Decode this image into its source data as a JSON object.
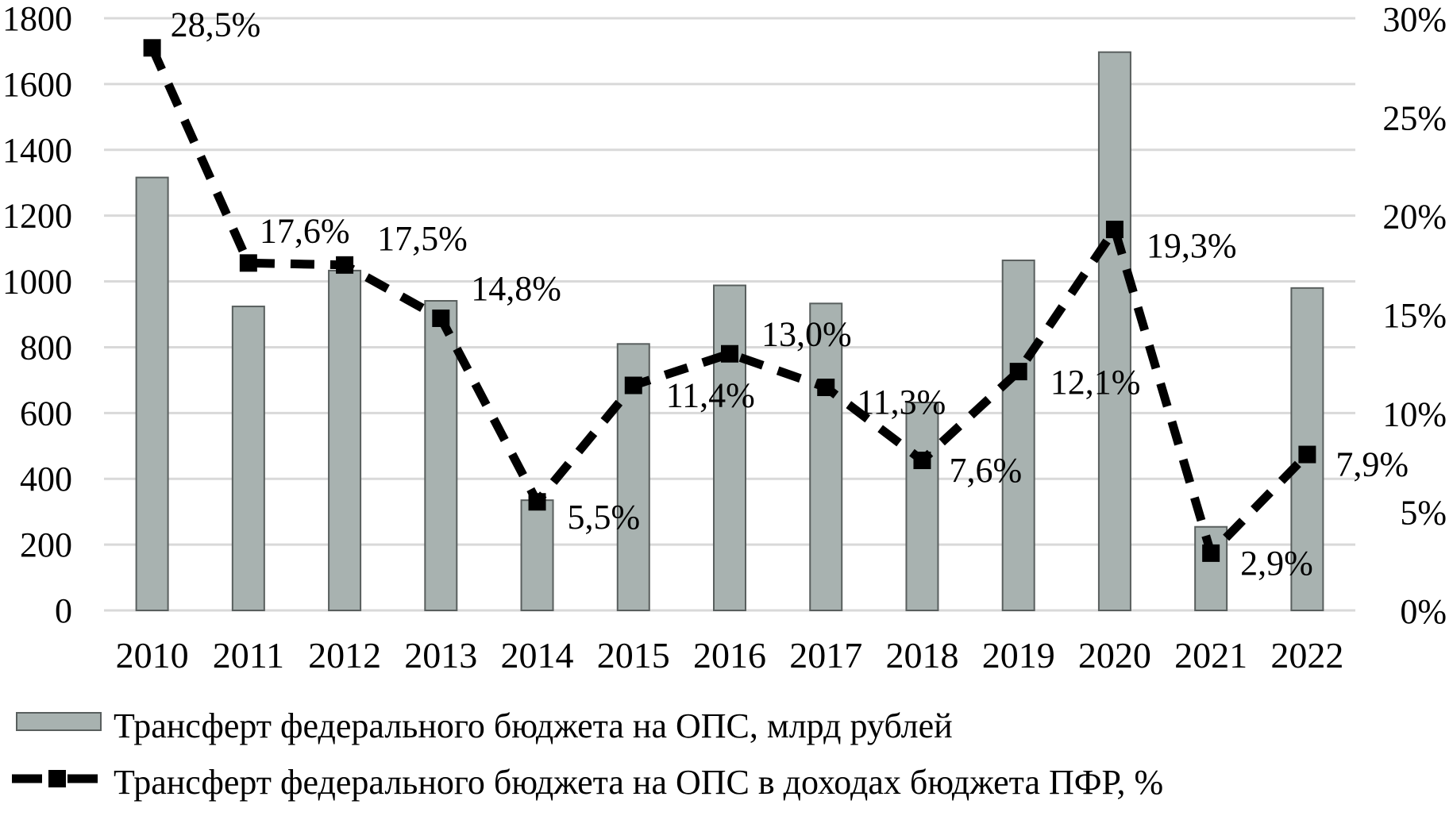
{
  "chart_data": {
    "type": "combo-bar-line",
    "title": "",
    "categories": [
      "2010",
      "2011",
      "2012",
      "2013",
      "2014",
      "2015",
      "2016",
      "2017",
      "2018",
      "2019",
      "2020",
      "2021",
      "2022"
    ],
    "series": [
      {
        "name": "Трансферт федерального бюджета на ОПС, млрд рублей",
        "type": "bar",
        "axis": "left",
        "values": [
          1316,
          924,
          1033,
          941,
          335,
          810,
          988,
          933,
          632,
          1064,
          1697,
          254,
          980
        ]
      },
      {
        "name": "Трансферт федерального бюджета на ОПС в доходах бюджета ПФР, %",
        "type": "line",
        "axis": "right",
        "values": [
          28.5,
          17.6,
          17.5,
          14.8,
          5.5,
          11.4,
          13.0,
          11.3,
          7.6,
          12.1,
          19.3,
          2.9,
          7.9
        ],
        "point_labels": [
          "28,5%",
          "17,6%",
          "17,5%",
          "14,8%",
          "5,5%",
          "11,4%",
          "13,0%",
          "11,3%",
          "7,6%",
          "12,1%",
          "19,3%",
          "2,9%",
          "7,9%"
        ]
      }
    ],
    "left_axis": {
      "min": 0,
      "max": 1800,
      "step": 200,
      "tick_labels": [
        "1800",
        "1600",
        "1400",
        "1200",
        "1000",
        "800",
        "600",
        "400",
        "200",
        "0"
      ]
    },
    "right_axis": {
      "min": 0,
      "max": 30,
      "step": 5,
      "tick_labels": [
        "30%",
        "25%",
        "20%",
        "15%",
        "10%",
        "5%",
        "0%"
      ]
    },
    "grid": true,
    "legend_position": "bottom"
  },
  "colors": {
    "bar_fill": "#a8b2b0",
    "bar_border": "#595f5e",
    "line": "#000000",
    "marker": "#000000",
    "gridline": "#d9d9d9",
    "text": "#000000",
    "background": "#ffffff"
  }
}
